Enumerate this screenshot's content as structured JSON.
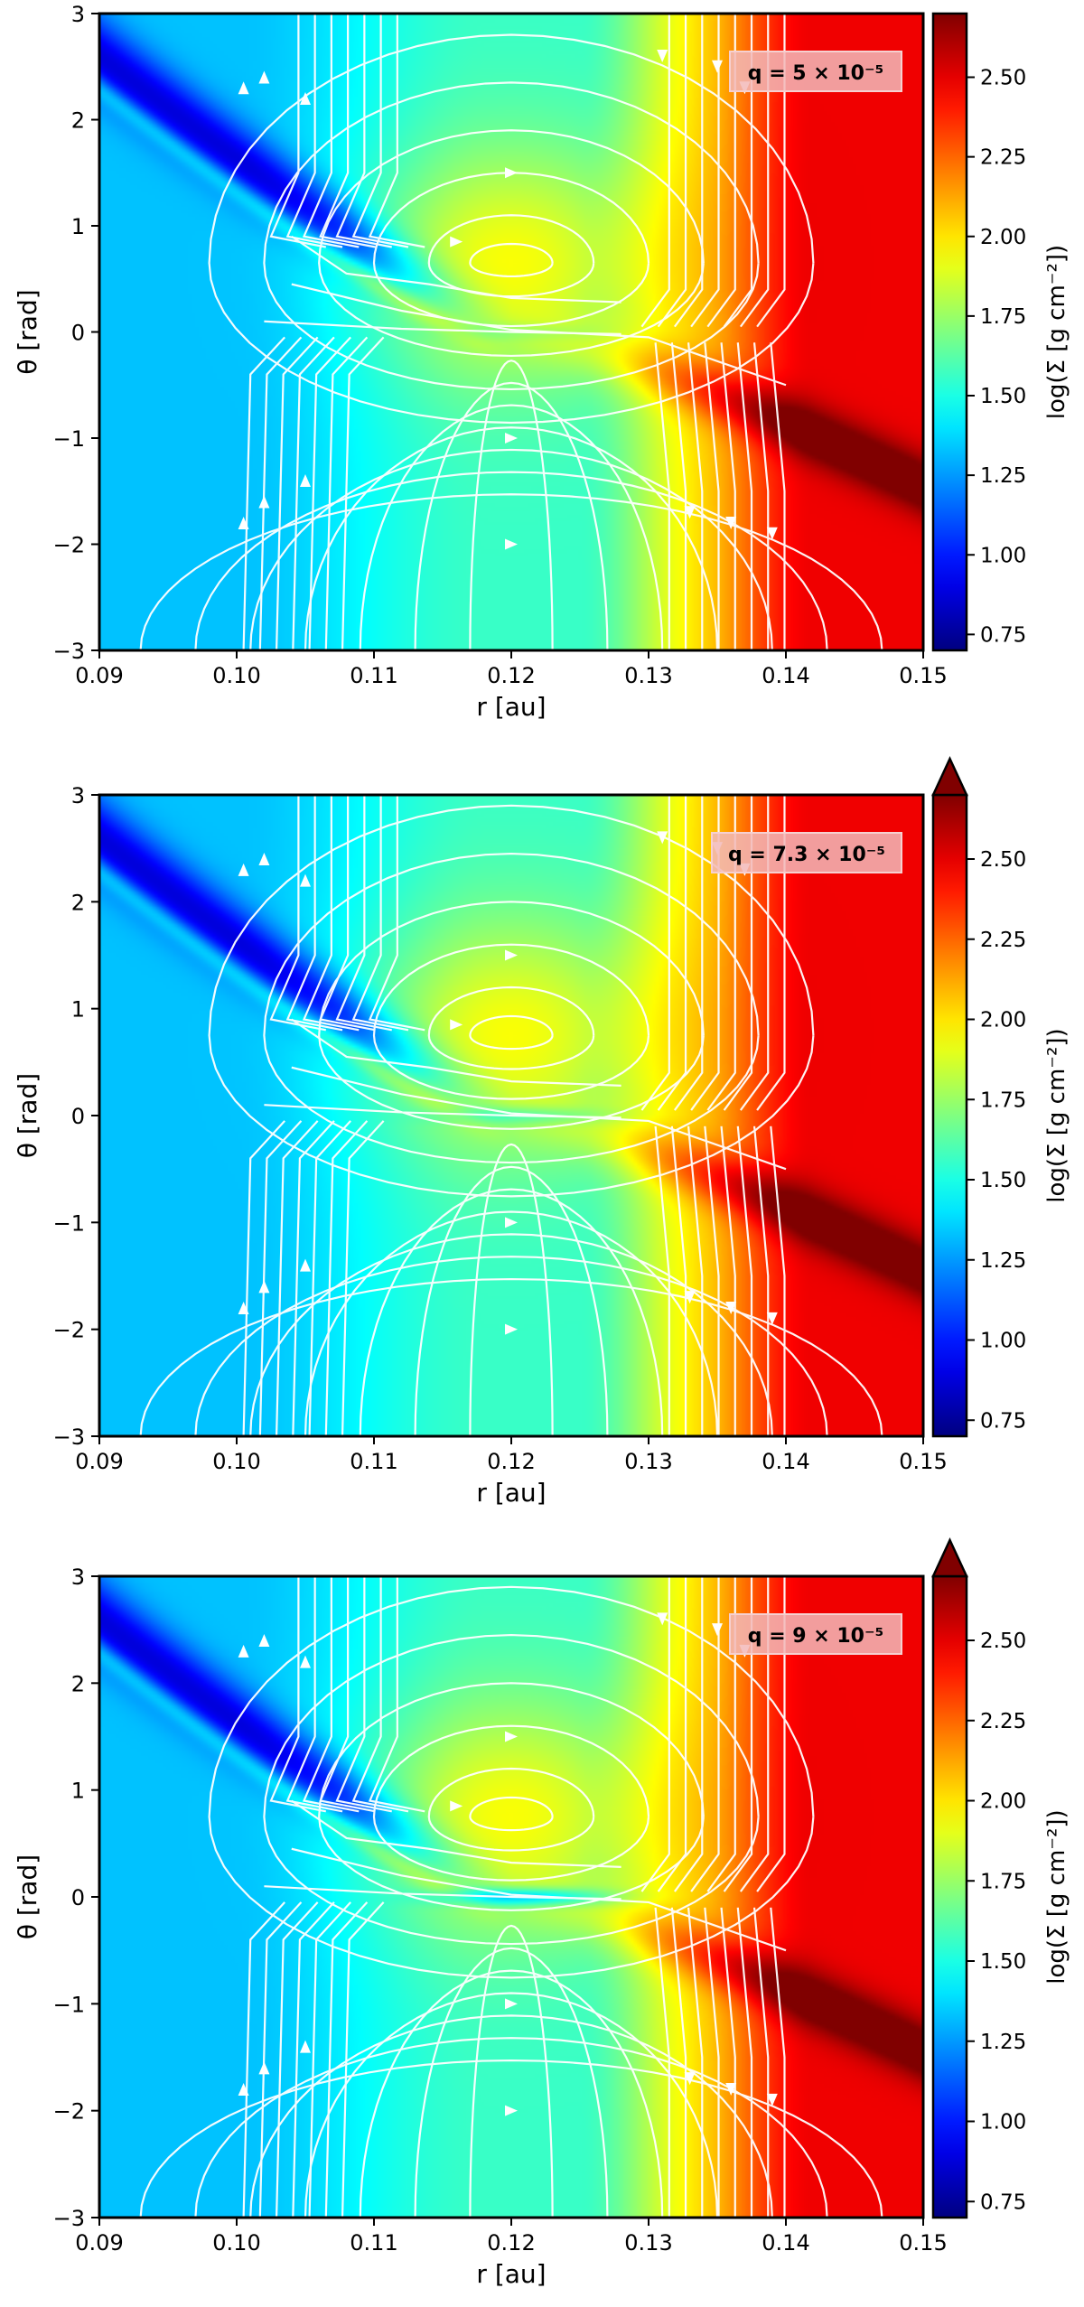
{
  "chart_data": [
    {
      "type": "heatmap",
      "panel": 1,
      "annotation": "q = 5 × 10⁻⁵",
      "xlabel": "r [au]",
      "ylabel": "θ [rad]",
      "xlim": [
        0.09,
        0.15
      ],
      "ylim": [
        -3,
        3
      ],
      "xticks": [
        "0.09",
        "0.10",
        "0.11",
        "0.12",
        "0.13",
        "0.14",
        "0.15"
      ],
      "yticks": [
        "3",
        "2",
        "1",
        "0",
        "−1",
        "−2",
        "−3"
      ],
      "colorbar": {
        "label": "log(Σ [g cm⁻²])",
        "range": [
          0.7,
          2.7
        ],
        "ticks": [
          "0.75",
          "1.00",
          "1.25",
          "1.50",
          "1.75",
          "2.00",
          "2.25",
          "2.50"
        ],
        "extend_max": false
      },
      "streamlines": "white",
      "vortex_center": [
        0.12,
        0.65
      ]
    },
    {
      "type": "heatmap",
      "panel": 2,
      "annotation": "q = 7.3 × 10⁻⁵",
      "xlabel": "r [au]",
      "ylabel": "θ [rad]",
      "xlim": [
        0.09,
        0.15
      ],
      "ylim": [
        -3,
        3
      ],
      "xticks": [
        "0.09",
        "0.10",
        "0.11",
        "0.12",
        "0.13",
        "0.14",
        "0.15"
      ],
      "yticks": [
        "3",
        "2",
        "1",
        "0",
        "−1",
        "−2",
        "−3"
      ],
      "colorbar": {
        "label": "log(Σ [g cm⁻²])",
        "range": [
          0.7,
          2.7
        ],
        "ticks": [
          "0.75",
          "1.00",
          "1.25",
          "1.50",
          "1.75",
          "2.00",
          "2.25",
          "2.50"
        ],
        "extend_max": true
      },
      "streamlines": "white",
      "vortex_center": [
        0.12,
        0.75
      ]
    },
    {
      "type": "heatmap",
      "panel": 3,
      "annotation": "q = 9 × 10⁻⁵",
      "xlabel": "r [au]",
      "ylabel": "θ [rad]",
      "xlim": [
        0.09,
        0.15
      ],
      "ylim": [
        -3,
        3
      ],
      "xticks": [
        "0.09",
        "0.10",
        "0.11",
        "0.12",
        "0.13",
        "0.14",
        "0.15"
      ],
      "yticks": [
        "3",
        "2",
        "1",
        "0",
        "−1",
        "−2",
        "−3"
      ],
      "colorbar": {
        "label": "log(Σ [g cm⁻²])",
        "range": [
          0.7,
          2.7
        ],
        "ticks": [
          "0.75",
          "1.00",
          "1.25",
          "1.50",
          "1.75",
          "2.00",
          "2.25",
          "2.50"
        ],
        "extend_max": true
      },
      "streamlines": "white",
      "vortex_center": [
        0.12,
        0.75
      ]
    }
  ]
}
